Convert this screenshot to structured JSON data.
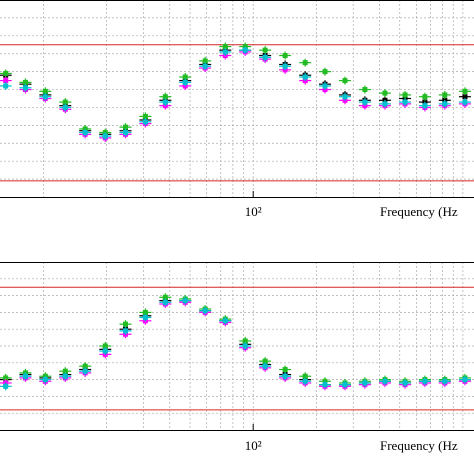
{
  "chart_data": [
    {
      "type": "scatter",
      "log_x": true,
      "xlim": [
        6.2,
        1130
      ],
      "ylim": [
        0,
        11
      ],
      "xticks": [
        {
          "value": 100,
          "label": "10²"
        }
      ],
      "xgrid": [
        10,
        20,
        30,
        40,
        50,
        60,
        70,
        80,
        90,
        100,
        200,
        300,
        400,
        500,
        600,
        700,
        800,
        900,
        1000
      ],
      "ygrid": [
        1,
        2,
        3,
        4,
        5,
        6,
        7,
        8,
        9,
        10
      ],
      "hlines": [
        8.5,
        0.9
      ],
      "hline_color": "#d62728",
      "xlabel": "Frequency (Hz",
      "x": [
        6.6,
        8.2,
        10.2,
        12.7,
        15.8,
        19.7,
        24.6,
        30.6,
        38.1,
        47.4,
        59,
        73.6,
        91.6,
        114,
        142,
        177,
        220,
        274,
        341,
        425,
        530,
        659,
        820,
        1023
      ],
      "series": [
        {
          "color": "#000000",
          "values": [
            6.8,
            6.3,
            5.7,
            5.1,
            3.7,
            3.5,
            3.7,
            4.3,
            5.4,
            6.5,
            7.4,
            8.2,
            8.2,
            7.9,
            7.4,
            6.8,
            6.3,
            5.7,
            5.4,
            5.4,
            5.5,
            5.3,
            5.4,
            5.6
          ]
        },
        {
          "color": "#22bb22",
          "values": [
            6.9,
            6.4,
            5.9,
            5.3,
            3.8,
            3.6,
            3.9,
            4.5,
            5.6,
            6.7,
            7.6,
            8.4,
            8.4,
            8.2,
            7.9,
            7.5,
            7.0,
            6.5,
            6.0,
            5.8,
            5.7,
            5.6,
            5.7,
            5.9
          ]
        },
        {
          "color": "#ff00ff",
          "values": [
            6.5,
            6.0,
            5.5,
            4.9,
            3.5,
            3.3,
            3.5,
            4.1,
            5.1,
            6.2,
            7.2,
            7.9,
            8.1,
            7.7,
            7.1,
            6.5,
            6.0,
            5.4,
            5.1,
            5.1,
            5.2,
            5.0,
            5.1,
            5.2
          ]
        },
        {
          "color": "#00bfcf",
          "values": [
            6.2,
            6.1,
            5.6,
            5.0,
            3.6,
            3.4,
            3.6,
            4.2,
            5.3,
            6.4,
            7.3,
            8.1,
            8.2,
            7.8,
            7.3,
            6.7,
            6.2,
            5.6,
            5.3,
            5.2,
            5.3,
            5.1,
            5.2,
            5.3
          ]
        }
      ]
    },
    {
      "type": "scatter",
      "log_x": true,
      "xlim": [
        6.2,
        1130
      ],
      "ylim": [
        0,
        10
      ],
      "xticks": [
        {
          "value": 100,
          "label": "10²"
        }
      ],
      "xgrid": [
        10,
        20,
        30,
        40,
        50,
        60,
        70,
        80,
        90,
        100,
        200,
        300,
        400,
        500,
        600,
        700,
        800,
        900,
        1000
      ],
      "ygrid": [
        1,
        2,
        3,
        4,
        5,
        6,
        7,
        8,
        9
      ],
      "hlines": [
        8.5,
        1.2
      ],
      "hline_color": "#d62728",
      "xlabel": "Frequency (Hz",
      "x": [
        6.6,
        8.2,
        10.2,
        12.7,
        15.8,
        19.7,
        24.6,
        30.6,
        38.1,
        47.4,
        59,
        73.6,
        91.6,
        114,
        142,
        177,
        220,
        274,
        341,
        425,
        530,
        659,
        820,
        1023
      ],
      "series": [
        {
          "color": "#000000",
          "values": [
            3.0,
            3.3,
            3.1,
            3.3,
            3.6,
            4.8,
            6.0,
            6.8,
            7.7,
            7.7,
            7.1,
            6.5,
            5.1,
            3.9,
            3.3,
            3.0,
            2.7,
            2.7,
            2.8,
            2.9,
            2.8,
            2.9,
            2.9,
            3.0
          ]
        },
        {
          "color": "#22bb22",
          "values": [
            3.1,
            3.4,
            3.2,
            3.5,
            3.8,
            5.0,
            6.3,
            7.0,
            7.9,
            7.8,
            7.2,
            6.6,
            5.3,
            4.1,
            3.6,
            3.2,
            2.9,
            2.8,
            2.9,
            3.0,
            2.9,
            3.0,
            3.0,
            3.1
          ]
        },
        {
          "color": "#ff00ff",
          "values": [
            2.8,
            3.1,
            2.9,
            3.1,
            3.4,
            4.5,
            5.7,
            6.5,
            7.5,
            7.6,
            7.0,
            6.4,
            4.9,
            3.7,
            3.1,
            2.8,
            2.6,
            2.6,
            2.7,
            2.8,
            2.7,
            2.8,
            2.8,
            2.9
          ]
        },
        {
          "color": "#00bfcf",
          "values": [
            2.6,
            3.2,
            3.0,
            3.2,
            3.5,
            4.7,
            5.9,
            6.7,
            7.6,
            7.7,
            7.1,
            6.5,
            5.0,
            3.8,
            3.2,
            2.9,
            2.7,
            2.7,
            2.8,
            2.9,
            2.8,
            2.9,
            2.9,
            3.0
          ]
        }
      ]
    }
  ]
}
